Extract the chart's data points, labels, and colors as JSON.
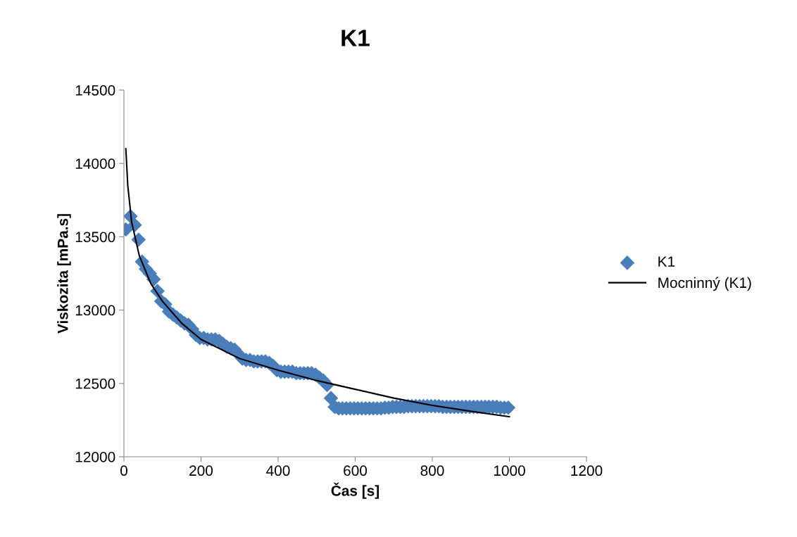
{
  "chart_data": {
    "type": "scatter",
    "title": "K1",
    "xlabel": "Čas [s]",
    "ylabel": "Viskozita [mPa.s]",
    "xlim": [
      0,
      1200
    ],
    "xticks": [
      0,
      200,
      400,
      600,
      800,
      1000,
      1200
    ],
    "ylim": [
      12000,
      14500
    ],
    "yticks": [
      12000,
      12500,
      13000,
      13500,
      14000,
      14500
    ],
    "grid": false,
    "legend": "right",
    "marker": "diamond",
    "series": [
      {
        "name": "K1",
        "color": "#4a7ebb",
        "x": [
          5,
          17,
          28,
          38,
          47,
          57,
          67,
          77,
          87,
          97,
          107,
          117,
          127,
          137,
          147,
          157,
          167,
          177,
          187,
          197,
          207,
          217,
          227,
          237,
          247,
          257,
          267,
          277,
          287,
          297,
          307,
          317,
          327,
          337,
          347,
          357,
          367,
          377,
          387,
          397,
          407,
          417,
          427,
          437,
          447,
          457,
          467,
          477,
          487,
          497,
          507,
          517,
          527,
          537,
          547,
          557,
          567,
          577,
          587,
          597,
          607,
          617,
          627,
          637,
          647,
          657,
          667,
          677,
          687,
          697,
          707,
          717,
          727,
          737,
          747,
          757,
          767,
          777,
          787,
          797,
          807,
          817,
          827,
          837,
          847,
          857,
          867,
          877,
          887,
          897,
          907,
          917,
          927,
          937,
          947,
          957,
          967,
          977,
          987,
          997
        ],
        "values": [
          13550,
          13640,
          13580,
          13480,
          13330,
          13280,
          13250,
          13210,
          13130,
          13060,
          13040,
          12990,
          12970,
          12950,
          12930,
          12910,
          12900,
          12870,
          12830,
          12810,
          12810,
          12800,
          12800,
          12800,
          12790,
          12770,
          12750,
          12740,
          12730,
          12700,
          12670,
          12660,
          12660,
          12650,
          12650,
          12650,
          12650,
          12640,
          12620,
          12590,
          12580,
          12580,
          12580,
          12580,
          12570,
          12570,
          12570,
          12570,
          12570,
          12560,
          12540,
          12520,
          12490,
          12400,
          12340,
          12330,
          12330,
          12330,
          12330,
          12330,
          12330,
          12330,
          12330,
          12330,
          12330,
          12330,
          12330,
          12335,
          12335,
          12340,
          12340,
          12340,
          12340,
          12345,
          12345,
          12345,
          12345,
          12345,
          12345,
          12345,
          12345,
          12345,
          12340,
          12340,
          12340,
          12340,
          12340,
          12340,
          12340,
          12340,
          12340,
          12340,
          12340,
          12340,
          12340,
          12340,
          12340,
          12335,
          12335,
          12335
        ]
      },
      {
        "name": "Mocninný (K1)",
        "color": "#000000",
        "type": "line",
        "marker": "none",
        "line_style": "solid",
        "x": [
          5,
          10,
          20,
          40,
          70,
          100,
          150,
          200,
          300,
          400,
          500,
          600,
          700,
          800,
          900,
          1000
        ],
        "values": [
          14100,
          13850,
          13600,
          13370,
          13180,
          13060,
          12910,
          12800,
          12670,
          12590,
          12520,
          12460,
          12400,
          12350,
          12310,
          12273
        ]
      }
    ]
  }
}
